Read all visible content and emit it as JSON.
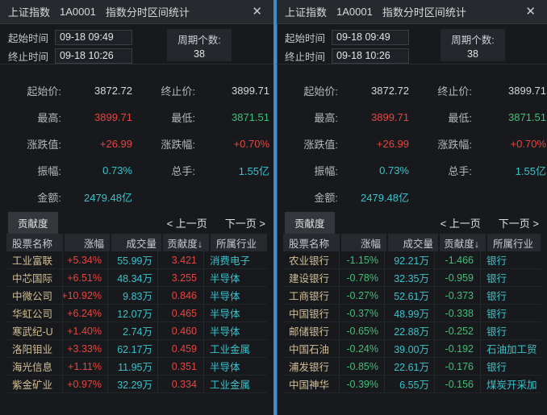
{
  "panels": [
    {
      "title": {
        "index_name": "上证指数",
        "code": "1A0001",
        "subtitle": "指数分时区间统计"
      },
      "close_glyph": "✕",
      "time": {
        "start_label": "起始时间",
        "start_value": "09-18 09:49",
        "end_label": "终止时间",
        "end_value": "09-18 10:26",
        "period_label": "周期个数:",
        "period_value": "38"
      },
      "stats": [
        {
          "label": "起始价:",
          "value": "3872.72",
          "tone": "plain"
        },
        {
          "label": "终止价:",
          "value": "3899.71",
          "tone": "plain"
        },
        {
          "label": "最高:",
          "value": "3899.71",
          "tone": "up"
        },
        {
          "label": "最低:",
          "value": "3871.51",
          "tone": "down"
        },
        {
          "label": "涨跌值:",
          "value": "+26.99",
          "tone": "up"
        },
        {
          "label": "涨跌幅:",
          "value": "+0.70%",
          "tone": "up"
        },
        {
          "label": "振幅:",
          "value": "0.73%",
          "tone": "cyan"
        },
        {
          "label": "总手:",
          "value": "1.55亿",
          "tone": "cyan"
        },
        {
          "label": "金额:",
          "value": "2479.48亿",
          "tone": "cyan"
        }
      ],
      "tab_label": "贡献度",
      "pagination": {
        "prev_label": "< 上一页",
        "next_label": "下一页 >"
      },
      "table": {
        "headers": [
          "股票名称",
          "涨幅",
          "成交量",
          "贡献度↓",
          "所属行业"
        ],
        "rows": [
          {
            "name": "工业富联",
            "change": "+5.34%",
            "volume": "55.99万",
            "contribution": "3.421",
            "industry": "消费电子"
          },
          {
            "name": "中芯国际",
            "change": "+6.51%",
            "volume": "48.34万",
            "contribution": "3.255",
            "industry": "半导体"
          },
          {
            "name": "中微公司",
            "change": "+10.92%",
            "volume": "9.83万",
            "contribution": "0.846",
            "industry": "半导体"
          },
          {
            "name": "华虹公司",
            "change": "+6.24%",
            "volume": "12.07万",
            "contribution": "0.465",
            "industry": "半导体"
          },
          {
            "name": "寒武纪-U",
            "change": "+1.40%",
            "volume": "2.74万",
            "contribution": "0.460",
            "industry": "半导体"
          },
          {
            "name": "洛阳钼业",
            "change": "+3.33%",
            "volume": "62.17万",
            "contribution": "0.459",
            "industry": "工业金属"
          },
          {
            "name": "海光信息",
            "change": "+1.11%",
            "volume": "11.95万",
            "contribution": "0.351",
            "industry": "半导体"
          },
          {
            "name": "紫金矿业",
            "change": "+0.97%",
            "volume": "32.29万",
            "contribution": "0.334",
            "industry": "工业金属"
          }
        ]
      }
    },
    {
      "title": {
        "index_name": "上证指数",
        "code": "1A0001",
        "subtitle": "指数分时区间统计"
      },
      "close_glyph": "✕",
      "time": {
        "start_label": "起始时间",
        "start_value": "09-18 09:49",
        "end_label": "终止时间",
        "end_value": "09-18 10:26",
        "period_label": "周期个数:",
        "period_value": "38"
      },
      "stats": [
        {
          "label": "起始价:",
          "value": "3872.72",
          "tone": "plain"
        },
        {
          "label": "终止价:",
          "value": "3899.71",
          "tone": "plain"
        },
        {
          "label": "最高:",
          "value": "3899.71",
          "tone": "up"
        },
        {
          "label": "最低:",
          "value": "3871.51",
          "tone": "down"
        },
        {
          "label": "涨跌值:",
          "value": "+26.99",
          "tone": "up"
        },
        {
          "label": "涨跌幅:",
          "value": "+0.70%",
          "tone": "up"
        },
        {
          "label": "振幅:",
          "value": "0.73%",
          "tone": "cyan"
        },
        {
          "label": "总手:",
          "value": "1.55亿",
          "tone": "cyan"
        },
        {
          "label": "金额:",
          "value": "2479.48亿",
          "tone": "cyan"
        }
      ],
      "tab_label": "贡献度",
      "pagination": {
        "prev_label": "< 上一页",
        "next_label": "下一页 >"
      },
      "table": {
        "headers": [
          "股票名称",
          "涨幅",
          "成交量",
          "贡献度↓",
          "所属行业"
        ],
        "rows": [
          {
            "name": "农业银行",
            "change": "-1.15%",
            "volume": "92.21万",
            "contribution": "-1.466",
            "industry": "银行"
          },
          {
            "name": "建设银行",
            "change": "-0.78%",
            "volume": "32.35万",
            "contribution": "-0.959",
            "industry": "银行"
          },
          {
            "name": "工商银行",
            "change": "-0.27%",
            "volume": "52.61万",
            "contribution": "-0.373",
            "industry": "银行"
          },
          {
            "name": "中国银行",
            "change": "-0.37%",
            "volume": "48.99万",
            "contribution": "-0.338",
            "industry": "银行"
          },
          {
            "name": "邮储银行",
            "change": "-0.65%",
            "volume": "22.88万",
            "contribution": "-0.252",
            "industry": "银行"
          },
          {
            "name": "中国石油",
            "change": "-0.24%",
            "volume": "39.00万",
            "contribution": "-0.192",
            "industry": "石油加工贸"
          },
          {
            "name": "浦发银行",
            "change": "-0.85%",
            "volume": "22.61万",
            "contribution": "-0.176",
            "industry": "银行"
          },
          {
            "name": "中国神华",
            "change": "-0.39%",
            "volume": "6.55万",
            "contribution": "-0.156",
            "industry": "煤炭开采加"
          }
        ]
      }
    }
  ],
  "colors": {
    "up_red": "#e84540",
    "down_green": "#3ec177",
    "cyan": "#38c3cb",
    "stock_name_tan": "#d3bf96",
    "divider_blue": "#3e8fc9",
    "background": "#17191c",
    "titlebar": "#26292d"
  }
}
